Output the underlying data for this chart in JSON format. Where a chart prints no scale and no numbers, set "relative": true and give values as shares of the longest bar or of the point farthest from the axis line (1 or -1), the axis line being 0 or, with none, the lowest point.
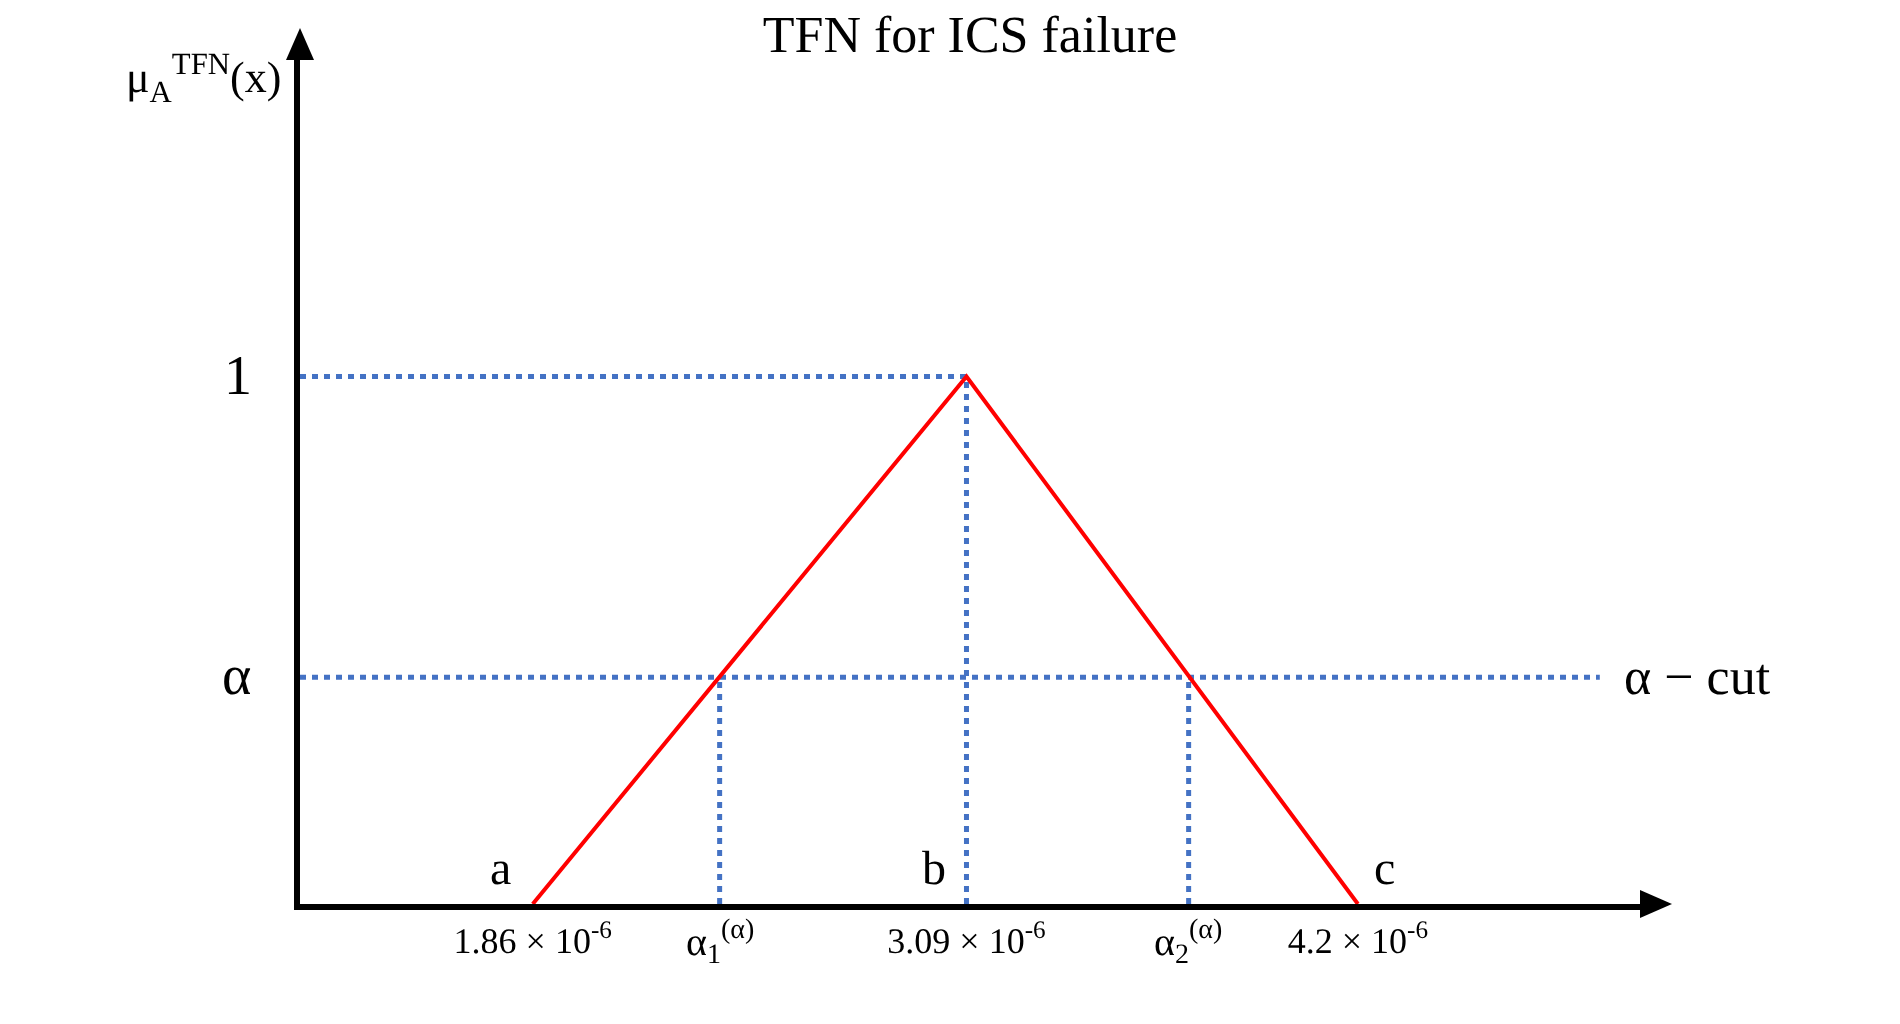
{
  "chart_data": {
    "type": "line",
    "title": "TFN for ICS failure",
    "relative": true,
    "x": [
      1.86e-06,
      3.09e-06,
      4.2e-06
    ],
    "series": [
      {
        "color": "#ff0000",
        "values": [
          0,
          1,
          0
        ]
      }
    ],
    "xlim": [
      1.2e-06,
      5e-06
    ],
    "xticks": [
      {
        "value": 1.86e-06,
        "label": "1.86 × 10$^{-6}$"
      },
      {
        "value": 3.09e-06,
        "label": "3.09 × 10$^{-6}$"
      },
      {
        "value": 4.2e-06,
        "label": "4.2 × 10$^{-6}$"
      }
    ],
    "ref_lines": [
      {
        "axis": "y",
        "value": 0.43,
        "label": "α",
        "color": "#4472c4",
        "line_style": "dotted"
      },
      {
        "axis": "y",
        "value": 1,
        "label": "1",
        "color": "#4472c4",
        "line_style": "dotted"
      },
      {
        "axis": "x",
        "value": 2.39e-06,
        "label": "α$_{1}$$^{(α)}$",
        "color": "#4472c4",
        "line_style": "dotted"
      },
      {
        "axis": "x",
        "value": 3.09e-06,
        "label": null,
        "color": "#4472c4",
        "line_style": "dotted"
      },
      {
        "axis": "x",
        "value": 3.72e-06,
        "label": "α$_{2}$$^{(α)}$",
        "color": "#4472c4",
        "line_style": "dotted"
      }
    ],
    "annotations": [
      {
        "text": "a",
        "x": 1.86e-06,
        "y": 0
      },
      {
        "text": "b",
        "x": 3.09e-06,
        "y": 0
      },
      {
        "text": "c",
        "x": 4.2e-06,
        "y": 0
      },
      "μ$_{A}$$^{TFN}$(x)",
      "α − cut"
    ],
    "marker": "none",
    "line_style": "solid"
  }
}
